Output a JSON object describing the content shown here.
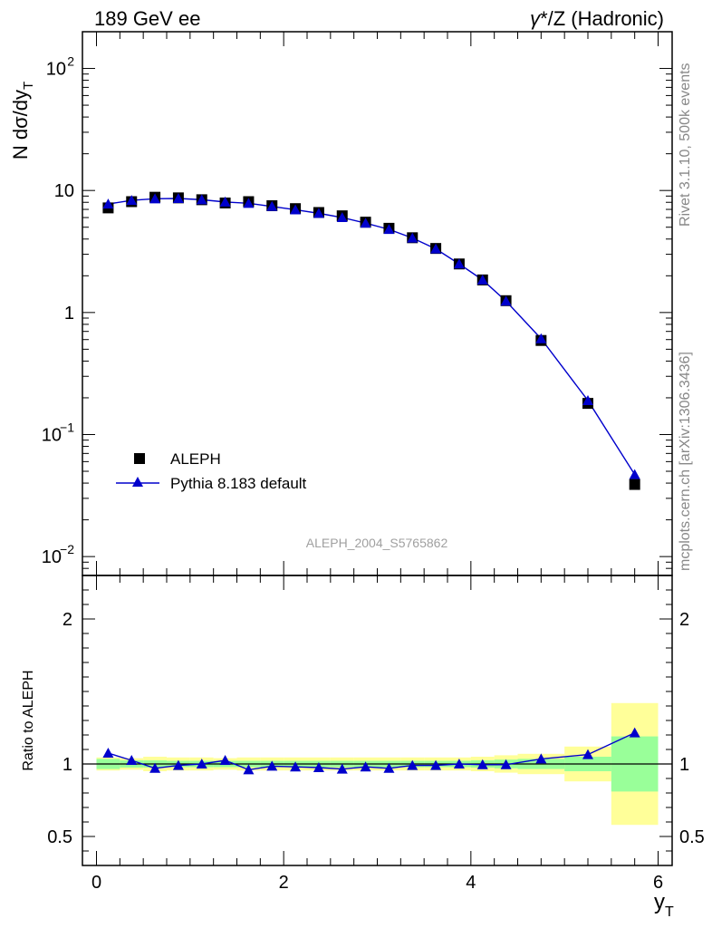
{
  "header": {
    "left_title": "189 GeV ee",
    "right_title_gamma": "γ",
    "right_title_rest": "*/Z (Hadronic)"
  },
  "side_labels": {
    "rivet": "Rivet 3.1.10,  500k events",
    "mcplots": "mcplots.cern.ch [arXiv:1306.3436]"
  },
  "watermark": "ALEPH_2004_S5765862",
  "colors": {
    "data": "#000000",
    "mc": "#0000cc",
    "band_inner": "#99ff99",
    "band_outer": "#ffff99"
  },
  "chart_data": [
    {
      "type": "scatter",
      "panel": "main",
      "title": "",
      "ylabel": "N dσ/dy",
      "ylabel_sub": "T",
      "yscale": "log",
      "xlim": [
        -0.15,
        6.15
      ],
      "ylim": [
        0.007,
        200
      ],
      "y_ticks": [
        {
          "value": 0.01,
          "base": "10",
          "exp": "−2"
        },
        {
          "value": 0.1,
          "base": "10",
          "exp": "−1"
        },
        {
          "value": 1,
          "base": "1",
          "exp": ""
        },
        {
          "value": 10,
          "base": "10",
          "exp": ""
        },
        {
          "value": 100,
          "base": "10",
          "exp": "2"
        }
      ],
      "x": [
        0.125,
        0.375,
        0.625,
        0.875,
        1.125,
        1.375,
        1.625,
        1.875,
        2.125,
        2.375,
        2.625,
        2.875,
        3.125,
        3.375,
        3.625,
        3.875,
        4.125,
        4.375,
        4.75,
        5.25,
        5.75
      ],
      "series": [
        {
          "name": "ALEPH",
          "marker": "square",
          "values": [
            7.2,
            8.1,
            8.8,
            8.7,
            8.4,
            7.9,
            8.1,
            7.5,
            7.1,
            6.6,
            6.2,
            5.5,
            4.9,
            4.1,
            3.35,
            2.5,
            1.85,
            1.25,
            0.59,
            0.18,
            0.039
          ]
        },
        {
          "name": "Pythia 8.183 default",
          "marker": "triangle",
          "values": [
            7.75,
            8.3,
            8.55,
            8.6,
            8.4,
            8.05,
            7.85,
            7.4,
            6.95,
            6.5,
            6.0,
            5.4,
            4.8,
            4.08,
            3.32,
            2.5,
            1.85,
            1.24,
            0.61,
            0.19,
            0.047
          ]
        }
      ],
      "legend_position": "lower-left"
    },
    {
      "type": "scatter",
      "panel": "ratio",
      "ylabel": "Ratio to ALEPH",
      "xlabel": "y",
      "xlabel_sub": "T",
      "xlim": [
        -0.15,
        6.15
      ],
      "ylim": [
        0.3,
        2.3
      ],
      "x_ticks": [
        "0",
        "2",
        "4",
        "6"
      ],
      "x_tick_values": [
        0,
        2,
        4,
        6
      ],
      "y_ticks": [
        "0.5",
        "1",
        "2"
      ],
      "y_tick_values": [
        0.5,
        1,
        2
      ],
      "bin_edges": [
        0,
        0.25,
        0.5,
        0.75,
        1.0,
        1.25,
        1.5,
        1.75,
        2.0,
        2.25,
        2.5,
        2.75,
        3.0,
        3.25,
        3.5,
        3.75,
        4.0,
        4.25,
        4.5,
        5.0,
        5.5,
        6.0
      ],
      "band_inner_halfwidth": [
        0.035,
        0.025,
        0.025,
        0.022,
        0.022,
        0.022,
        0.022,
        0.022,
        0.022,
        0.022,
        0.022,
        0.022,
        0.022,
        0.022,
        0.022,
        0.022,
        0.025,
        0.03,
        0.035,
        0.05,
        0.19
      ],
      "band_outer_halfwidth": [
        0.045,
        0.04,
        0.05,
        0.045,
        0.045,
        0.04,
        0.045,
        0.045,
        0.045,
        0.045,
        0.045,
        0.045,
        0.045,
        0.045,
        0.045,
        0.045,
        0.05,
        0.06,
        0.07,
        0.12,
        0.42
      ],
      "x": [
        0.125,
        0.375,
        0.625,
        0.875,
        1.125,
        1.375,
        1.625,
        1.875,
        2.125,
        2.375,
        2.625,
        2.875,
        3.125,
        3.375,
        3.625,
        3.875,
        4.125,
        4.375,
        4.75,
        5.25,
        5.75
      ],
      "series": [
        {
          "name": "Pythia 8.183 default / ALEPH",
          "values": [
            1.075,
            1.025,
            0.97,
            0.99,
            1.0,
            1.025,
            0.96,
            0.985,
            0.98,
            0.975,
            0.965,
            0.98,
            0.97,
            0.99,
            0.99,
            1.0,
            0.995,
            0.995,
            1.035,
            1.065,
            1.215
          ]
        }
      ]
    }
  ]
}
